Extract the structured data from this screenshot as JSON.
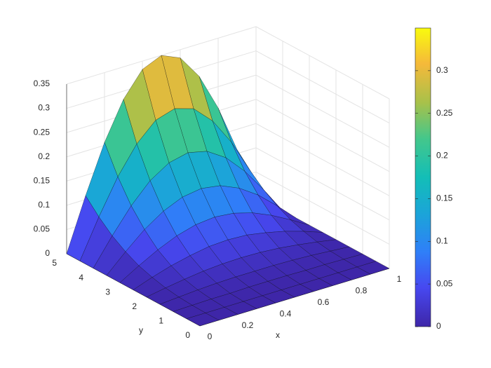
{
  "chart_data": {
    "type": "surface",
    "xlabel": "x",
    "ylabel": "y",
    "x": [
      0,
      0.1,
      0.2,
      0.3,
      0.4,
      0.5,
      0.6,
      0.7,
      0.8,
      0.9,
      1
    ],
    "y": [
      0,
      0.5,
      1,
      1.5,
      2,
      2.5,
      3,
      3.5,
      4,
      4.5,
      5
    ],
    "z": [
      [
        0,
        0,
        0,
        0,
        0,
        0,
        0,
        0,
        0,
        0,
        0
      ],
      [
        0,
        0,
        0,
        0,
        0,
        0,
        0,
        0,
        0,
        0,
        0
      ],
      [
        0,
        0.001,
        0.002,
        0.002,
        0.003,
        0.003,
        0.003,
        0.002,
        0.002,
        0.001,
        0
      ],
      [
        0,
        0.003,
        0.006,
        0.008,
        0.009,
        0.009,
        0.009,
        0.008,
        0.006,
        0.003,
        0
      ],
      [
        0,
        0.007,
        0.013,
        0.018,
        0.021,
        0.022,
        0.021,
        0.018,
        0.013,
        0.007,
        0
      ],
      [
        0,
        0.014,
        0.026,
        0.035,
        0.042,
        0.044,
        0.042,
        0.035,
        0.026,
        0.014,
        0
      ],
      [
        0,
        0.023,
        0.044,
        0.061,
        0.072,
        0.076,
        0.072,
        0.061,
        0.044,
        0.023,
        0
      ],
      [
        0,
        0.037,
        0.071,
        0.097,
        0.114,
        0.12,
        0.114,
        0.097,
        0.071,
        0.037,
        0
      ],
      [
        0,
        0.055,
        0.105,
        0.145,
        0.17,
        0.179,
        0.17,
        0.145,
        0.105,
        0.055,
        0
      ],
      [
        0,
        0.079,
        0.15,
        0.206,
        0.243,
        0.255,
        0.243,
        0.206,
        0.15,
        0.079,
        0
      ],
      [
        0,
        0.108,
        0.206,
        0.283,
        0.333,
        0.35,
        0.333,
        0.283,
        0.206,
        0.108,
        0
      ]
    ],
    "xlim": [
      0,
      1
    ],
    "ylim": [
      0,
      5
    ],
    "zlim": [
      0,
      0.35
    ],
    "xticks": [
      0,
      0.2,
      0.4,
      0.6,
      0.8,
      1
    ],
    "yticks": [
      0,
      1,
      2,
      3,
      4,
      5
    ],
    "zticks": [
      0,
      0.05,
      0.1,
      0.15,
      0.2,
      0.25,
      0.3,
      0.35
    ],
    "clim": [
      0,
      0.35
    ],
    "cticks": [
      0,
      0.05,
      0.1,
      0.15,
      0.2,
      0.25,
      0.3
    ],
    "colormap": "parula",
    "grid": true,
    "edgecolor": "#000000"
  }
}
